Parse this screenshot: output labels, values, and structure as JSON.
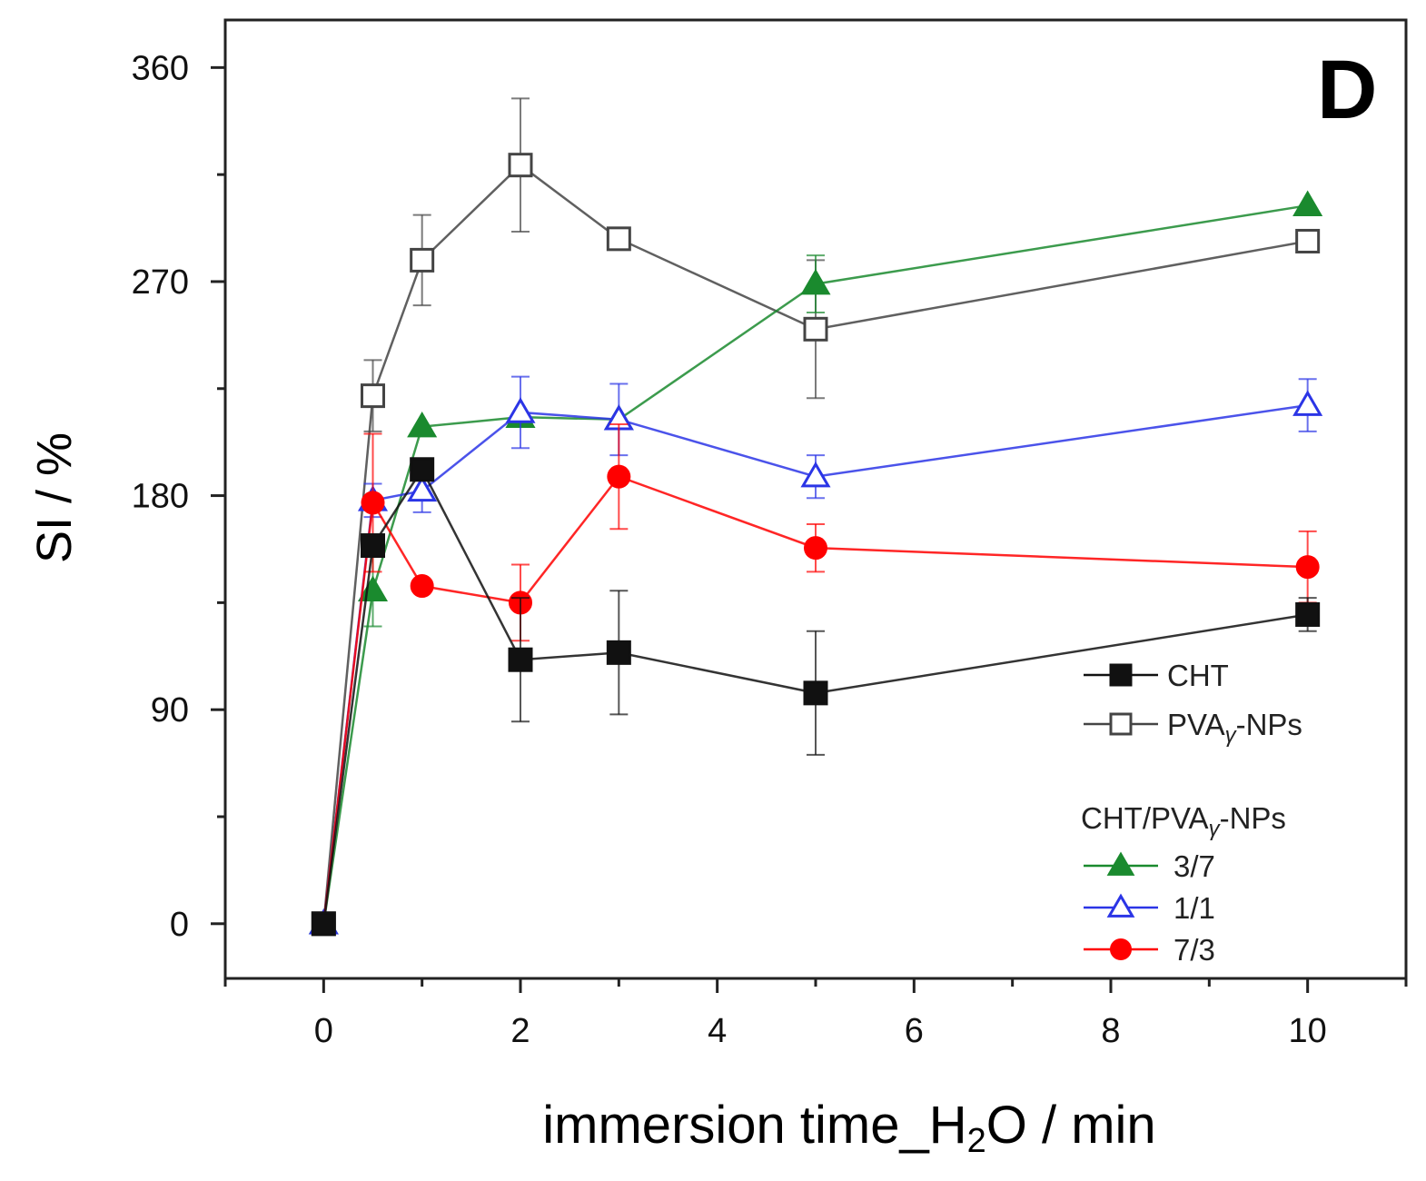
{
  "chart_data": {
    "type": "line",
    "panel_label": "D",
    "xlabel_main": "immersion time_H",
    "xlabel_sub": "2",
    "xlabel_tail": "O / min",
    "ylabel": "SI / %",
    "xlim": [
      -1,
      11
    ],
    "ylim": [
      -23,
      380
    ],
    "xticks": [
      0,
      2,
      4,
      6,
      8,
      10
    ],
    "yticks": [
      0,
      90,
      180,
      270,
      360
    ],
    "x": [
      0,
      0.5,
      1,
      2,
      3,
      5,
      10
    ],
    "legend_group_title": "CHT/PVAγ-NPs",
    "series": [
      {
        "name": "PVAγ-NPs",
        "legend_main": "PVA",
        "legend_sub": "γ",
        "legend_tail": "-NPs",
        "color": "#444444",
        "marker": "square-open",
        "values": [
          0,
          222,
          279,
          319,
          288,
          250,
          287
        ],
        "errors": [
          0,
          15,
          19,
          28,
          0,
          29,
          0
        ]
      },
      {
        "name": "3/7",
        "color": "#1a8a2e",
        "marker": "triangle-filled",
        "values": [
          0,
          140,
          209,
          213,
          212,
          269,
          302
        ],
        "errors": [
          0,
          15,
          0,
          0,
          0,
          12,
          0
        ]
      },
      {
        "name": "1/1",
        "color": "#2b35e6",
        "marker": "triangle-open",
        "values": [
          0,
          178,
          182,
          215,
          212,
          188,
          218
        ],
        "errors": [
          0,
          7,
          9,
          15,
          15,
          9,
          11
        ]
      },
      {
        "name": "7/3",
        "color": "#ff0000",
        "marker": "circle-filled",
        "values": [
          0,
          177,
          142,
          135,
          188,
          158,
          150
        ],
        "errors": [
          0,
          29,
          0,
          16,
          22,
          10,
          15
        ]
      },
      {
        "name": "CHT",
        "color": "#111111",
        "marker": "square-filled",
        "values": [
          0,
          159,
          191,
          111,
          114,
          97,
          130
        ],
        "errors": [
          0,
          0,
          0,
          26,
          26,
          26,
          7
        ]
      }
    ],
    "legend_order": [
      "CHT",
      "PVAγ-NPs",
      "3/7",
      "1/1",
      "7/3"
    ],
    "legend_position": "bottom-right",
    "grid": false
  }
}
